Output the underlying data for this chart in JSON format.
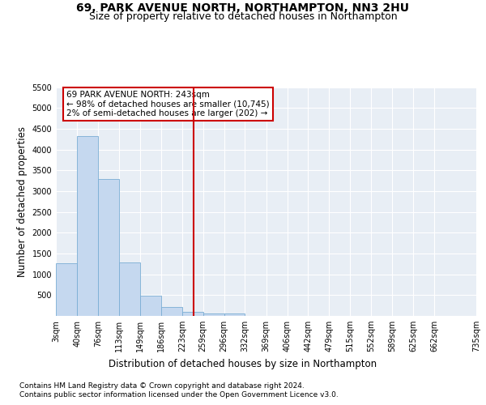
{
  "title_line1": "69, PARK AVENUE NORTH, NORTHAMPTON, NN3 2HU",
  "title_line2": "Size of property relative to detached houses in Northampton",
  "xlabel": "Distribution of detached houses by size in Northampton",
  "ylabel": "Number of detached properties",
  "annotation_title": "69 PARK AVENUE NORTH: 243sqm",
  "annotation_line2": "← 98% of detached houses are smaller (10,745)",
  "annotation_line3": "2% of semi-detached houses are larger (202) →",
  "footnote1": "Contains HM Land Registry data © Crown copyright and database right 2024.",
  "footnote2": "Contains public sector information licensed under the Open Government Licence v3.0.",
  "bar_values": [
    1270,
    4330,
    3300,
    1280,
    490,
    215,
    90,
    50,
    55,
    0,
    0,
    0,
    0,
    0,
    0,
    0,
    0,
    0,
    0
  ],
  "bin_edges": [
    3,
    40,
    76,
    113,
    149,
    186,
    223,
    259,
    296,
    332,
    369,
    406,
    442,
    479,
    515,
    552,
    589,
    625,
    662,
    735
  ],
  "tick_labels": [
    "3sqm",
    "40sqm",
    "76sqm",
    "113sqm",
    "149sqm",
    "186sqm",
    "223sqm",
    "259sqm",
    "296sqm",
    "332sqm",
    "369sqm",
    "406sqm",
    "442sqm",
    "479sqm",
    "515sqm",
    "552sqm",
    "589sqm",
    "625sqm",
    "662sqm",
    "735sqm"
  ],
  "property_size": 243,
  "vline_color": "#cc0000",
  "bar_facecolor": "#c5d8ef",
  "bar_edgecolor": "#7aadd4",
  "bg_color": "#e8eef5",
  "annotation_box_facecolor": "#ffffff",
  "annotation_box_edgecolor": "#cc0000",
  "ylim": [
    0,
    5500
  ],
  "yticks": [
    0,
    500,
    1000,
    1500,
    2000,
    2500,
    3000,
    3500,
    4000,
    4500,
    5000,
    5500
  ],
  "title_fontsize": 10,
  "subtitle_fontsize": 9,
  "axis_label_fontsize": 8.5,
  "tick_fontsize": 7,
  "annotation_fontsize": 7.5,
  "footnote_fontsize": 6.5
}
